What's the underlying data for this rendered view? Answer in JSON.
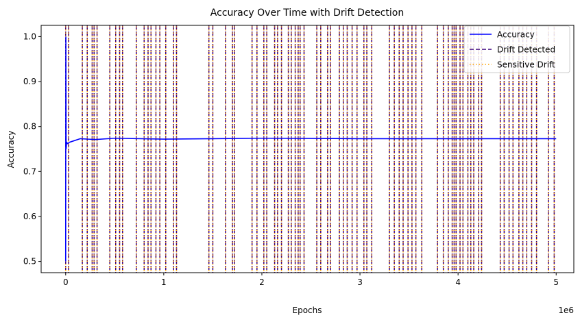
{
  "chart_data": {
    "type": "line",
    "title": "Accuracy Over Time with Drift Detection",
    "xlabel": "Epochs",
    "ylabel": "Accuracy",
    "x_offset_text": "1e6",
    "xlim": [
      -0.25,
      5.18
    ],
    "ylim": [
      0.475,
      1.025
    ],
    "x_ticks": [
      0,
      1,
      2,
      3,
      4,
      5
    ],
    "x_tick_labels": [
      "0",
      "1",
      "2",
      "3",
      "4",
      "5"
    ],
    "y_ticks": [
      0.5,
      0.6,
      0.7,
      0.8,
      0.9,
      1.0
    ],
    "y_tick_labels": [
      "0.5",
      "0.6",
      "0.7",
      "0.8",
      "0.9",
      "1.0"
    ],
    "grid": false,
    "legend_position": "top-right",
    "colors": {
      "accuracy": "#0000ff",
      "drift": "#3c007d",
      "sensitive": "#ffa500"
    },
    "legend": [
      "Accuracy",
      "Drift Detected",
      "Sensitive Drift"
    ],
    "series": [
      {
        "name": "Accuracy",
        "x": [
          0,
          0.002,
          0.005,
          0.01,
          0.02,
          0.04,
          0.08,
          0.15,
          0.3,
          0.5,
          1.0,
          1.5,
          2.0,
          3.0,
          4.0,
          5.0
        ],
        "y": [
          0.5,
          1.0,
          0.75,
          0.765,
          0.762,
          0.765,
          0.768,
          0.773,
          0.771,
          0.774,
          0.772,
          0.773,
          0.774,
          0.773,
          0.773,
          0.773
        ]
      }
    ],
    "drift_detected_x": [
      0.0,
      0.03,
      0.17,
      0.22,
      0.27,
      0.29,
      0.32,
      0.45,
      0.51,
      0.55,
      0.58,
      0.72,
      0.8,
      0.84,
      0.87,
      0.92,
      0.96,
      1.02,
      1.1,
      1.13,
      1.46,
      1.5,
      1.63,
      1.7,
      1.72,
      1.9,
      1.95,
      2.02,
      2.05,
      2.13,
      2.16,
      2.2,
      2.27,
      2.3,
      2.34,
      2.37,
      2.39,
      2.43,
      2.56,
      2.6,
      2.67,
      2.7,
      2.79,
      2.83,
      2.87,
      2.92,
      2.97,
      3.04,
      3.07,
      3.12,
      3.3,
      3.35,
      3.4,
      3.44,
      3.49,
      3.53,
      3.57,
      3.63,
      3.79,
      3.85,
      3.9,
      3.94,
      3.96,
      3.98,
      4.02,
      4.05,
      4.1,
      4.13,
      4.16,
      4.21,
      4.24,
      4.43,
      4.47,
      4.52,
      4.56,
      4.62,
      4.66,
      4.7,
      4.75,
      4.8,
      4.92,
      4.98
    ],
    "sensitive_drift_x": [
      0.0,
      0.03,
      0.17,
      0.22,
      0.27,
      0.29,
      0.32,
      0.45,
      0.51,
      0.55,
      0.58,
      0.72,
      0.8,
      0.84,
      0.87,
      0.92,
      0.96,
      1.02,
      1.1,
      1.13,
      1.46,
      1.5,
      1.63,
      1.7,
      1.72,
      1.9,
      1.95,
      2.02,
      2.05,
      2.13,
      2.16,
      2.2,
      2.27,
      2.3,
      2.34,
      2.37,
      2.39,
      2.43,
      2.56,
      2.6,
      2.67,
      2.7,
      2.79,
      2.83,
      2.87,
      2.92,
      2.97,
      3.04,
      3.07,
      3.12,
      3.3,
      3.35,
      3.4,
      3.44,
      3.49,
      3.53,
      3.57,
      3.63,
      3.79,
      3.85,
      3.9,
      3.94,
      3.96,
      3.98,
      4.02,
      4.05,
      4.1,
      4.13,
      4.16,
      4.21,
      4.24,
      4.43,
      4.47,
      4.52,
      4.56,
      4.62,
      4.66,
      4.7,
      4.75,
      4.8,
      4.92,
      4.98
    ]
  }
}
